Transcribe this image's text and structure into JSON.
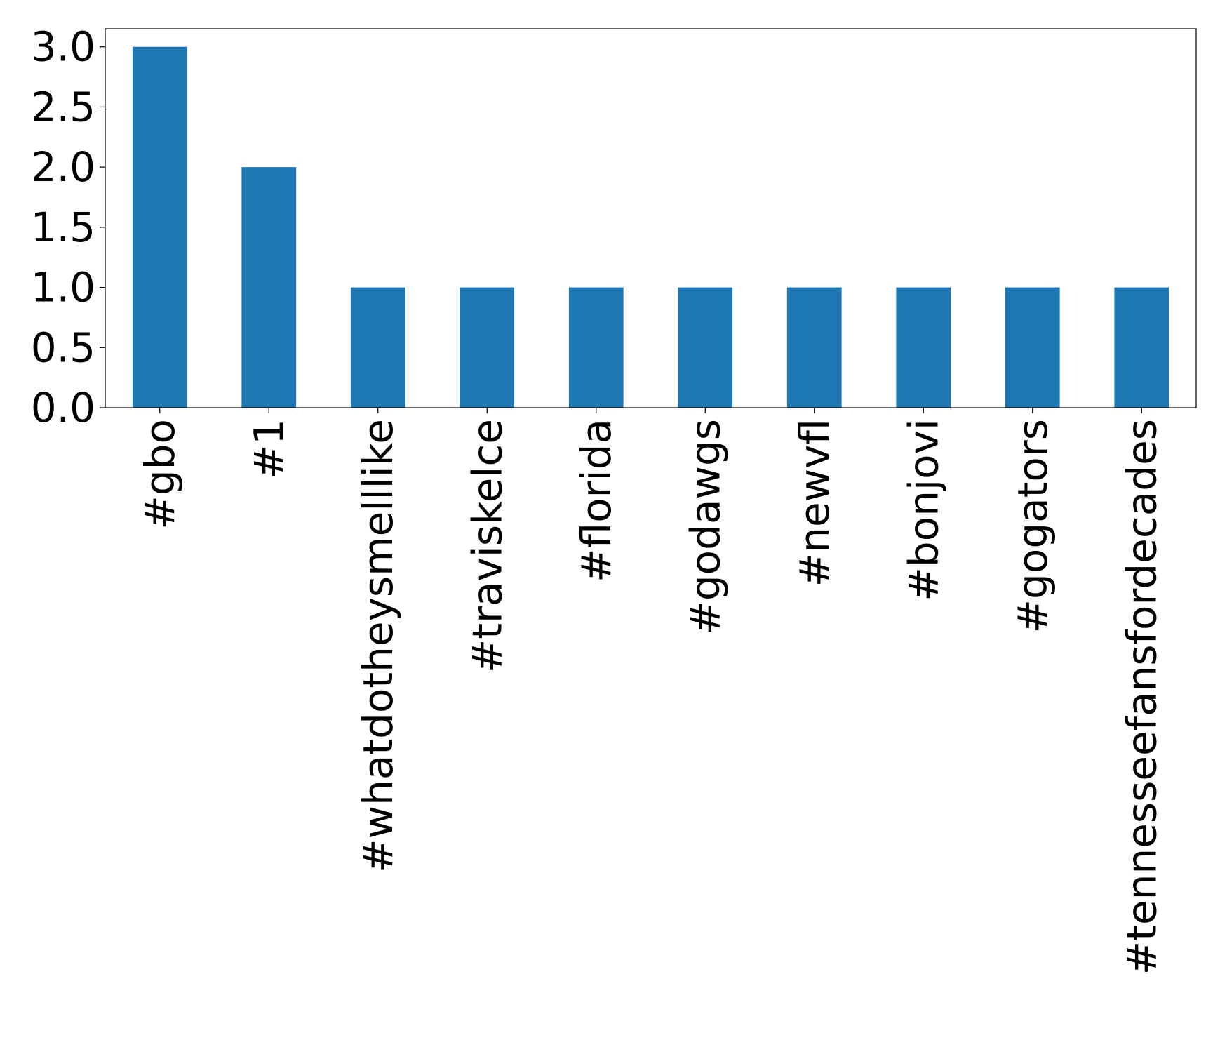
{
  "chart_data": {
    "type": "bar",
    "title": "",
    "xlabel": "",
    "ylabel": "",
    "categories": [
      "#gbo",
      "#1",
      "#whatdotheysmelllike",
      "#traviskelce",
      "#florida",
      "#godawgs",
      "#newvfl",
      "#bonjovi",
      "#gogators",
      "#tennesseefansfordecades"
    ],
    "values": [
      3,
      2,
      1,
      1,
      1,
      1,
      1,
      1,
      1,
      1
    ],
    "ylim": [
      0,
      3.15
    ],
    "yticks": [
      0.0,
      0.5,
      1.0,
      1.5,
      2.0,
      2.5,
      3.0
    ],
    "ytick_labels": [
      "0.0",
      "0.5",
      "1.0",
      "1.5",
      "2.0",
      "2.5",
      "3.0"
    ],
    "grid": false,
    "legend": "none",
    "bar_color": "#1f77b4"
  }
}
